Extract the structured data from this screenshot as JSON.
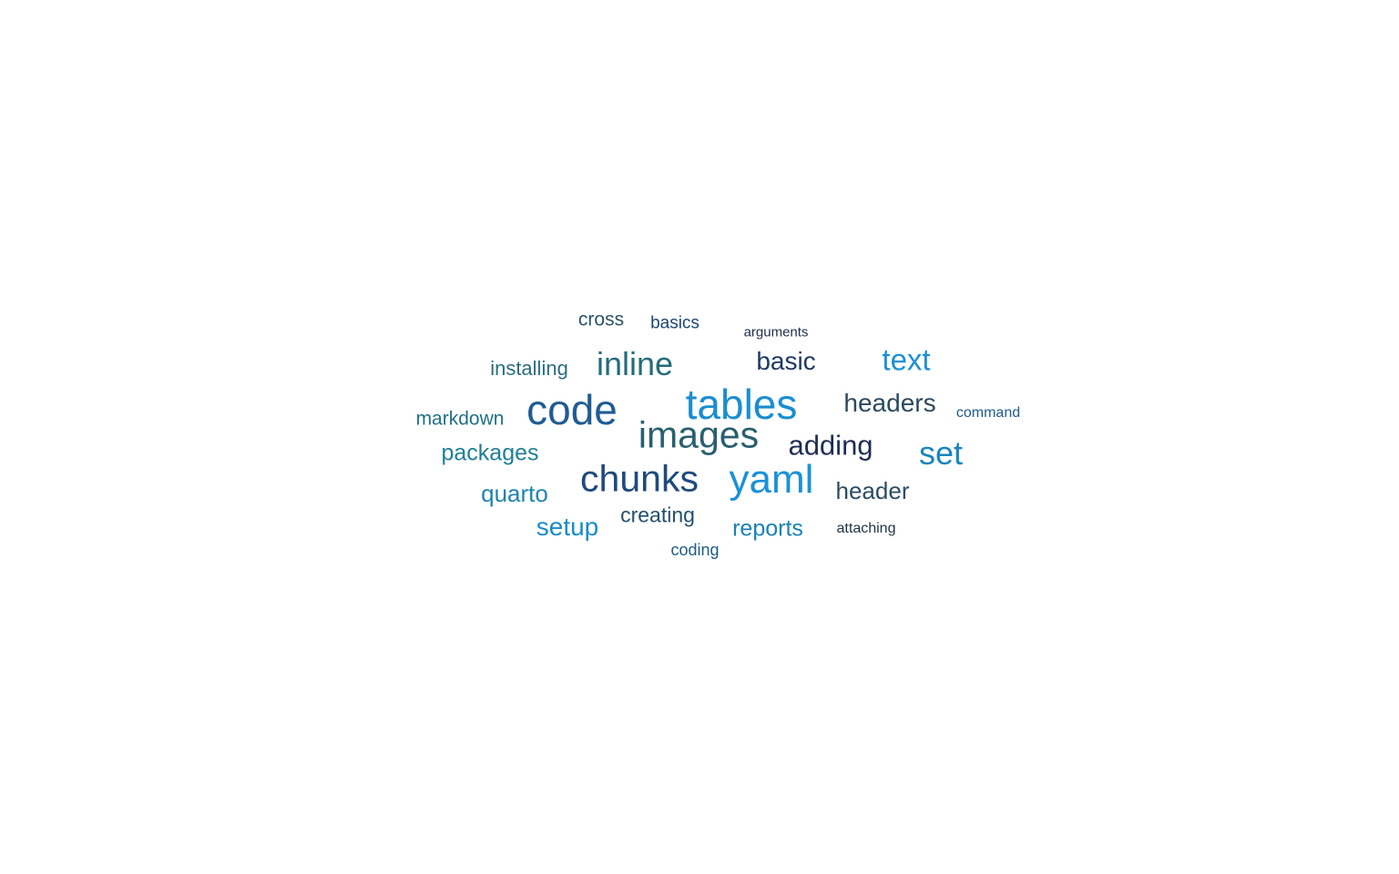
{
  "word_cloud": {
    "words": [
      {
        "text": "code",
        "color": "#1f5c94"
      },
      {
        "text": "tables",
        "color": "#1a8ecf"
      },
      {
        "text": "images",
        "color": "#2a5f6e"
      },
      {
        "text": "chunks",
        "color": "#1f4a7e"
      },
      {
        "text": "yaml",
        "color": "#1a91d9"
      },
      {
        "text": "inline",
        "color": "#246b7a"
      },
      {
        "text": "set",
        "color": "#1a85bd"
      },
      {
        "text": "text",
        "color": "#1b90d4"
      },
      {
        "text": "adding",
        "color": "#1f2d52"
      },
      {
        "text": "headers",
        "color": "#2b4a5e"
      },
      {
        "text": "basic",
        "color": "#1f3a63"
      },
      {
        "text": "header",
        "color": "#2a4d63"
      },
      {
        "text": "packages",
        "color": "#1f7f96"
      },
      {
        "text": "quarto",
        "color": "#1f84ad"
      },
      {
        "text": "setup",
        "color": "#1a8bc6"
      },
      {
        "text": "reports",
        "color": "#1a82b5"
      },
      {
        "text": "creating",
        "color": "#24506b"
      },
      {
        "text": "installing",
        "color": "#2a6e80"
      },
      {
        "text": "markdown",
        "color": "#1f7186"
      },
      {
        "text": "cross",
        "color": "#2a5466"
      },
      {
        "text": "basics",
        "color": "#1f4572"
      },
      {
        "text": "coding",
        "color": "#1f5c8a"
      },
      {
        "text": "command",
        "color": "#1f5c8a"
      },
      {
        "text": "attaching",
        "color": "#1f3347"
      },
      {
        "text": "arguments",
        "color": "#1f2d4d"
      }
    ]
  }
}
